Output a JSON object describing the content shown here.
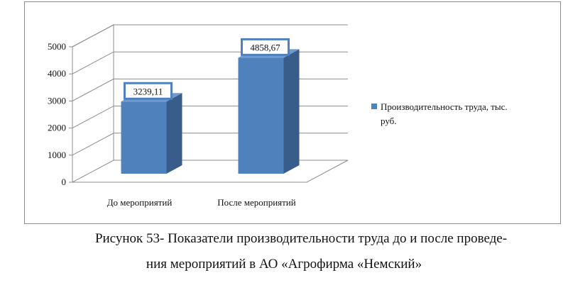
{
  "chart_data": {
    "type": "bar",
    "categories": [
      "До мероприятий",
      "После мероприятий"
    ],
    "series": [
      {
        "name": "Производительность труда, тыс. руб.",
        "values": [
          3239.11,
          4858.67
        ]
      }
    ],
    "data_labels": [
      "3239,11",
      "4858,67"
    ],
    "y_ticks": [
      "0",
      "1000",
      "2000",
      "3000",
      "4000",
      "5000"
    ],
    "ylim": [
      0,
      5000
    ],
    "grid": true,
    "legend_position": "right",
    "legend": {
      "line1": "Производительность труда, тыс.",
      "line2": "руб."
    },
    "colors": {
      "bar_front": "#4f81bd",
      "bar_side": "#385d8a",
      "bar_top": "#6f9ad0",
      "label_border": "#4f81bd",
      "grid": "#8c8c8c"
    }
  },
  "caption": {
    "line1": "Рисунок 53- Показатели производительности труда до и после проведе-",
    "line2": "ния мероприятий в АО «Агрофирма «Немский»"
  }
}
